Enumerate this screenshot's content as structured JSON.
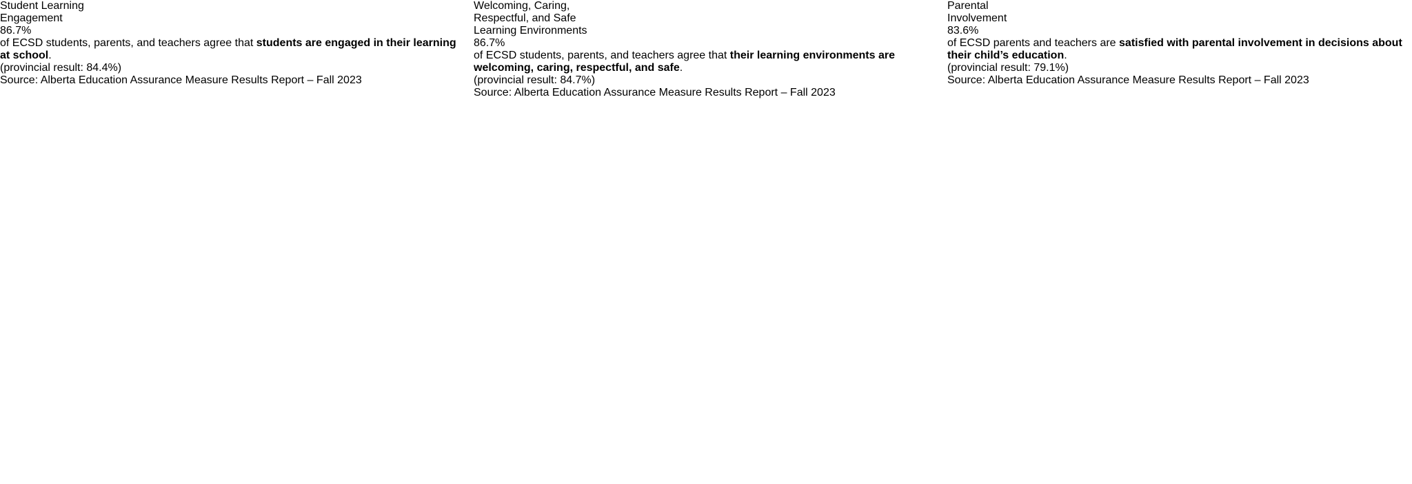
{
  "palette": {
    "gold_accent": "#F2A71E",
    "pale_yellow": "#FBEFA8",
    "cream": "#FDF9EA",
    "deep_purple": "#33104F",
    "bright_purple": "#4A0E7A",
    "stat_purple": "#5B2D88",
    "lavender_gray": "#D8D4DF",
    "mid_purple": "#5A3A90",
    "white": "#FFFFFF"
  },
  "panels": [
    {
      "id": "student-learning-engagement",
      "title_lines": [
        "Student Learning",
        "Engagement"
      ],
      "stat_value": "86.7%",
      "body": {
        "prefix": "of ECSD students, parents, and teachers agree that ",
        "bold": "students are engaged in their learning at school",
        "suffix": "."
      },
      "provincial_result": "(provincial result: 84.4%)",
      "source": "Source: Alberta Education Assurance Measure Results Report – Fall 2023"
    },
    {
      "id": "welcoming-caring-respectful-safe",
      "title_lines": [
        "Welcoming, Caring,",
        "Respectful, and Safe",
        "Learning Environments"
      ],
      "stat_value": "86.7%",
      "body": {
        "prefix": "of ECSD students, parents, and teachers agree that ",
        "bold": "their learning environments are welcoming, caring, respectful, and safe",
        "suffix": "."
      },
      "provincial_result": "(provincial result: 84.7%)",
      "source": "Source: Alberta Education Assurance Measure Results Report – Fall 2023"
    },
    {
      "id": "parental-involvement",
      "title_lines": [
        "Parental",
        "Involvement"
      ],
      "stat_value": "83.6%",
      "body": {
        "prefix": "of ECSD parents and teachers are ",
        "bold": "satisfied with parental involvement in decisions about their child’s education",
        "suffix": "."
      },
      "provincial_result": "(provincial result: 79.1%)",
      "source": "Source: Alberta Education Assurance Measure Results Report – Fall 2023"
    }
  ]
}
